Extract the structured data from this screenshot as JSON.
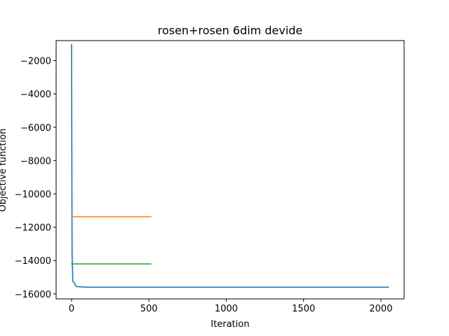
{
  "chart_data": {
    "type": "line",
    "title": "rosen+rosen 6dim devide",
    "xlabel": "Iteration",
    "ylabel": "Objective function",
    "xlim": [
      -100,
      2150
    ],
    "ylim": [
      -16300,
      -800
    ],
    "xticks": [
      0,
      500,
      1000,
      1500,
      2000
    ],
    "yticks": [
      -16000,
      -14000,
      -12000,
      -10000,
      -8000,
      -6000,
      -4000,
      -2000
    ],
    "grid": false,
    "series": [
      {
        "color": "#1f77b4",
        "points": [
          [
            0,
            -1050
          ],
          [
            2,
            -9600
          ],
          [
            3,
            -13500
          ],
          [
            5,
            -14300
          ],
          [
            8,
            -15250
          ],
          [
            15,
            -15300
          ],
          [
            20,
            -15400
          ],
          [
            30,
            -15560
          ],
          [
            60,
            -15580
          ],
          [
            100,
            -15600
          ],
          [
            500,
            -15600
          ],
          [
            1000,
            -15600
          ],
          [
            1500,
            -15600
          ],
          [
            2048,
            -15600
          ]
        ]
      },
      {
        "color": "#ff7f0e",
        "points": [
          [
            0,
            -11370
          ],
          [
            512,
            -11370
          ]
        ]
      },
      {
        "color": "#2ca02c",
        "points": [
          [
            0,
            -14200
          ],
          [
            512,
            -14200
          ]
        ]
      }
    ]
  }
}
